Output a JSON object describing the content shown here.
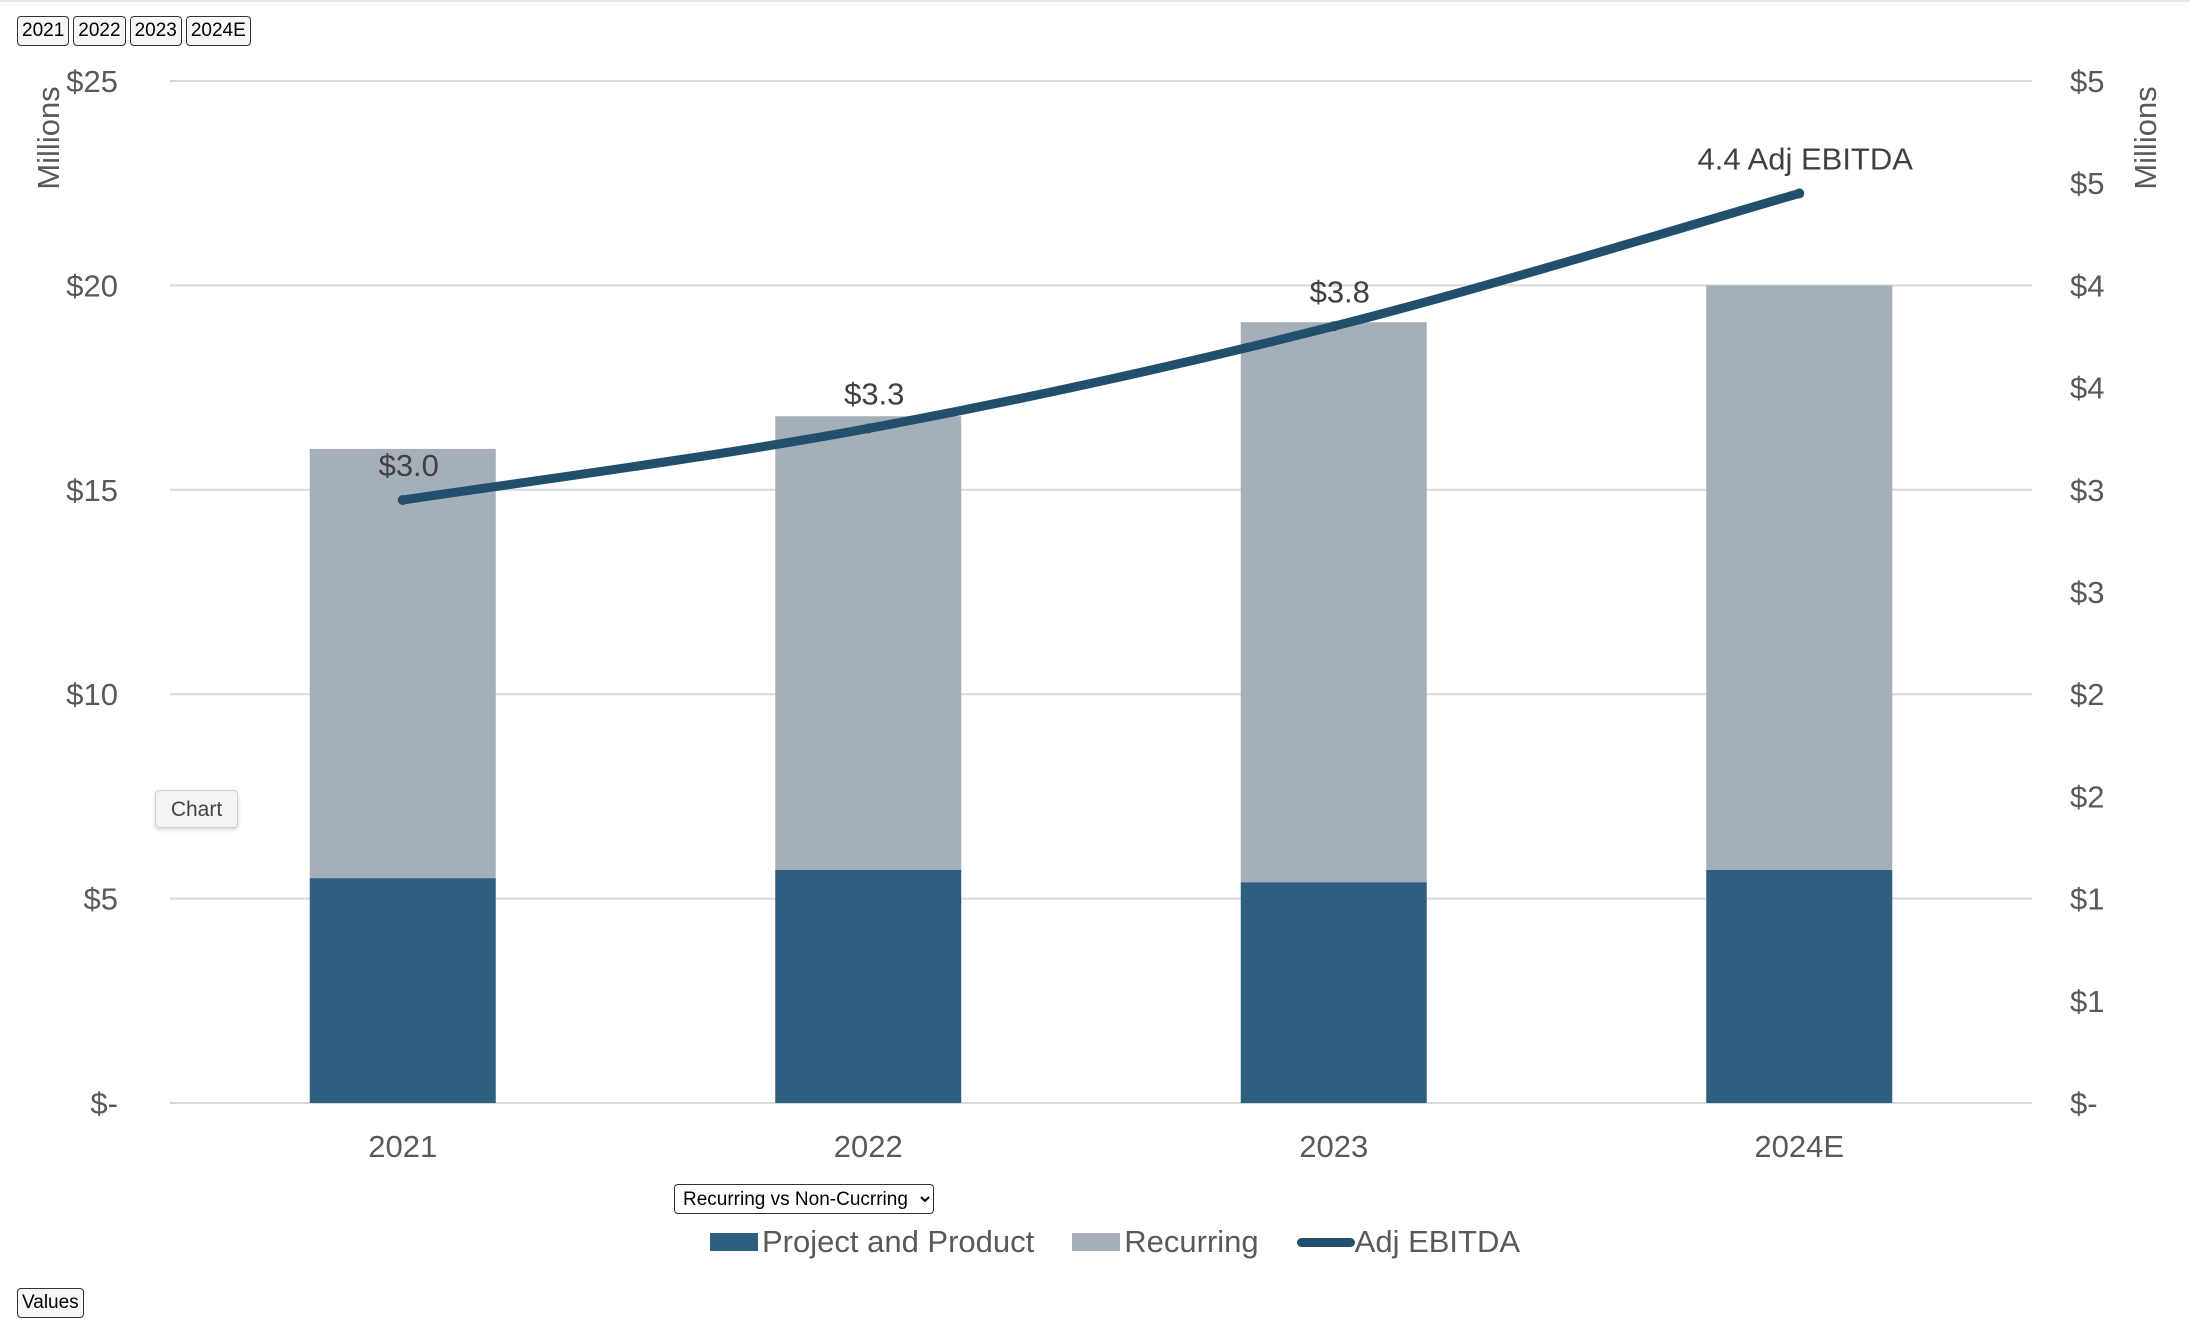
{
  "filters": [
    "2021",
    "2022",
    "2023",
    "2024E"
  ],
  "tooltip": "Chart",
  "view_select": {
    "selected": "Recurring vs Non-Cucrring"
  },
  "values_button": "Values",
  "colors": {
    "project": "#2e5f7f",
    "recurring": "#a5afb9",
    "ebitda": "#22506c",
    "grid": "#d9d9d9",
    "axis_text": "#595959"
  },
  "chart_data": {
    "type": "bar",
    "stacked": true,
    "categories": [
      "2021",
      "2022",
      "2023",
      "2024E"
    ],
    "series": [
      {
        "name": "Project and Product",
        "axis": "left",
        "values": [
          5.5,
          5.7,
          5.4,
          5.7
        ]
      },
      {
        "name": "Recurring",
        "axis": "left",
        "values": [
          10.5,
          11.1,
          13.7,
          14.3
        ]
      },
      {
        "name": "Adj EBITDA",
        "axis": "right",
        "type": "line",
        "values": [
          2.95,
          3.3,
          3.8,
          4.45
        ]
      }
    ],
    "left_axis": {
      "label": "Millions",
      "ylim": [
        0,
        25
      ],
      "ticks": [
        0,
        5,
        10,
        15,
        20,
        25
      ],
      "tick_labels": [
        "$-",
        "$5",
        "$10",
        "$15",
        "$20",
        "$25"
      ]
    },
    "right_axis": {
      "label": "Millions",
      "ylim": [
        0,
        5
      ],
      "ticks": [
        0,
        0.5,
        1,
        1.5,
        2,
        2.5,
        3,
        3.5,
        4,
        4.5,
        5
      ],
      "tick_labels": [
        "$-",
        "$1",
        "$1",
        "$2",
        "$2",
        "$3",
        "$3",
        "$4",
        "$4",
        "$5",
        "$5"
      ]
    },
    "data_labels": [
      "$3.0",
      "$3.3",
      "$3.8",
      "4.4 Adj EBITDA"
    ],
    "grid": true,
    "legend_position": "bottom"
  }
}
